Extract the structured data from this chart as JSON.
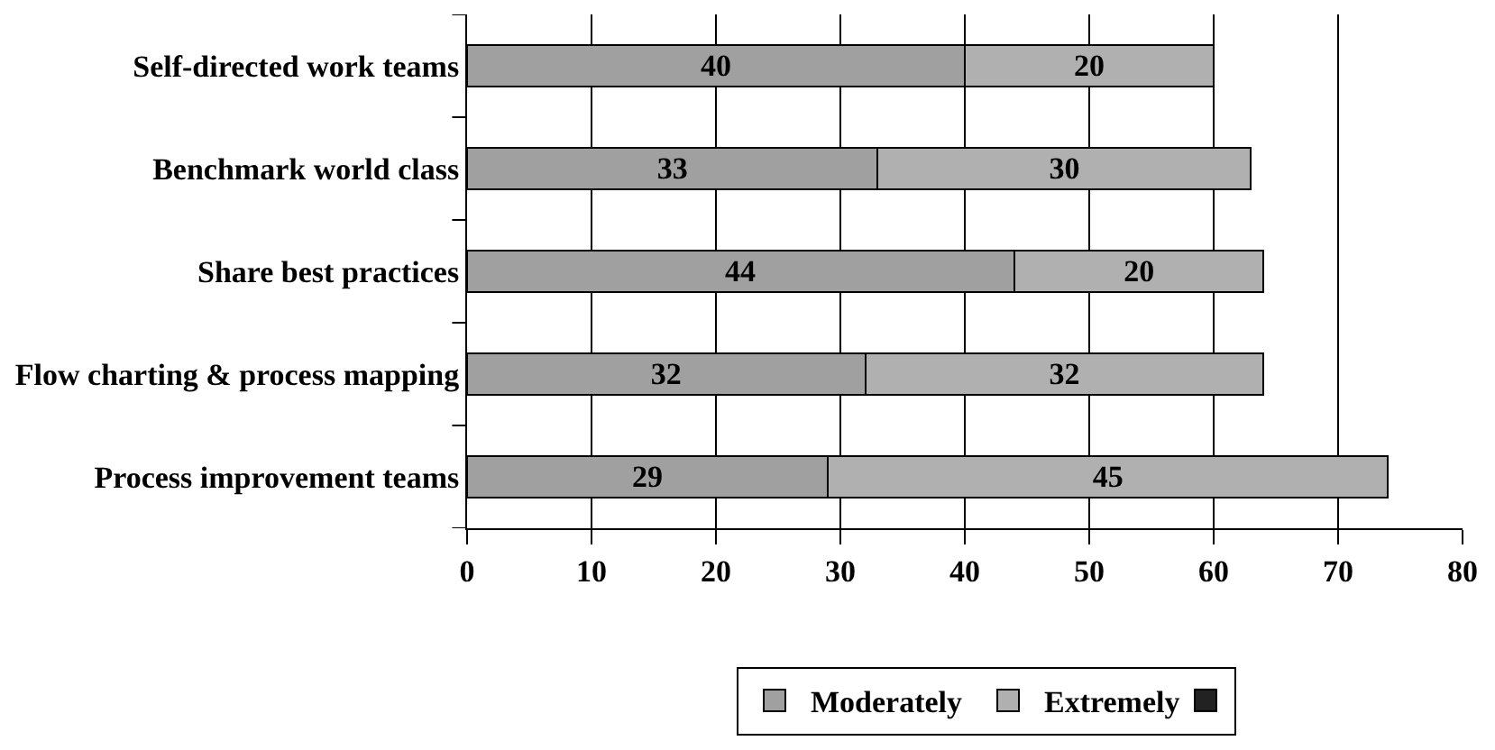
{
  "chart_data": {
    "type": "bar",
    "orientation": "horizontal",
    "stacked": true,
    "data_labels": true,
    "grid": "x",
    "legend": "bottom",
    "categories": [
      "Self-directed work teams",
      "Benchmark world class",
      "Share best practices",
      "Flow charting & process mapping",
      "Process improvement teams"
    ],
    "series": [
      {
        "name": "Moderately",
        "color": "#a0a0a0",
        "values": [
          40,
          33,
          44,
          32,
          29
        ]
      },
      {
        "name": "Extremely",
        "color": "#b0b0b0",
        "values": [
          20,
          30,
          20,
          32,
          45
        ]
      }
    ],
    "xlim": [
      0,
      80
    ],
    "xticks": [
      0,
      10,
      20,
      30,
      40,
      50,
      60,
      70,
      80
    ]
  }
}
